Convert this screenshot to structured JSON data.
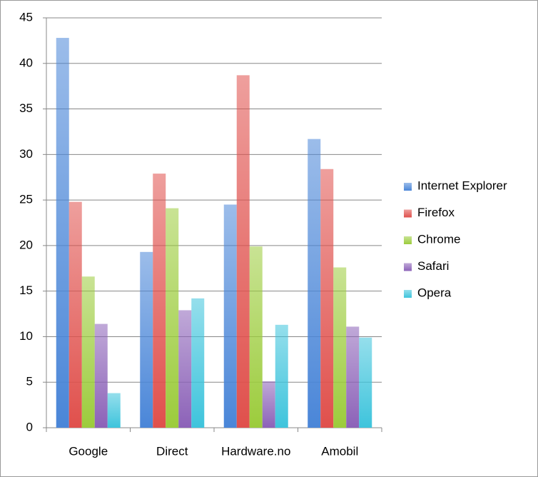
{
  "chart_data": {
    "type": "bar",
    "categories": [
      "Google",
      "Direct",
      "Hardware.no",
      "Amobil"
    ],
    "series": [
      {
        "name": "Internet Explorer",
        "color": "#4a86d8",
        "values": [
          42.8,
          19.3,
          24.5,
          31.7
        ]
      },
      {
        "name": "Firefox",
        "color": "#e0504c",
        "values": [
          24.8,
          27.9,
          38.7,
          28.4
        ]
      },
      {
        "name": "Chrome",
        "color": "#9ccc3c",
        "values": [
          16.6,
          24.1,
          19.9,
          17.6
        ]
      },
      {
        "name": "Safari",
        "color": "#8c62b8",
        "values": [
          11.4,
          12.9,
          5.1,
          11.1
        ]
      },
      {
        "name": "Opera",
        "color": "#3ec4dc",
        "values": [
          3.8,
          14.2,
          11.3,
          9.9
        ]
      }
    ],
    "ylim": [
      0,
      45
    ],
    "yticks": [
      0,
      5,
      10,
      15,
      20,
      25,
      30,
      35,
      40,
      45
    ],
    "grid": true,
    "legend": "right"
  }
}
